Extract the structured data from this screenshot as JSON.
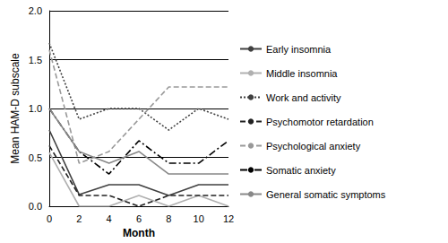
{
  "chart_data": {
    "type": "line",
    "x_label": "Month",
    "y_label": "Mean HAM-D subscale",
    "categories": [
      "0",
      "2",
      "4",
      "6",
      "8",
      "10",
      "12"
    ],
    "ylim": [
      0,
      2
    ],
    "yticks": [
      {
        "value": 0,
        "label": "0.0"
      },
      0.5,
      {
        "value": 1,
        "label": "1.0"
      },
      1.5,
      {
        "value": 2,
        "label": "2.0"
      }
    ],
    "grid": true,
    "legend": "right",
    "series": [
      {
        "name": "Early insomnia",
        "color": "#404040",
        "line_style": "solid",
        "values": [
          0.78,
          0.12,
          0.22,
          0.22,
          0.11,
          0.22,
          0.22
        ]
      },
      {
        "name": "Middle insomnia",
        "color": "#b0b0b0",
        "line_style": "solid",
        "values": [
          0.55,
          0.0,
          0.0,
          0.11,
          0.0,
          0.11,
          0.0
        ]
      },
      {
        "name": "Work and activity",
        "color": "#404040",
        "line_style": "dotted",
        "values": [
          1.67,
          0.89,
          1.0,
          1.0,
          0.78,
          1.0,
          0.89
        ]
      },
      {
        "name": "Psychomotor retardation",
        "color": "#222222",
        "line_style": "dashed",
        "values": [
          0.62,
          0.11,
          0.11,
          0.0,
          0.11,
          0.11,
          0.11
        ]
      },
      {
        "name": "Psychological anxiety",
        "color": "#999999",
        "line_style": "dashed",
        "values": [
          1.6,
          0.44,
          0.56,
          0.89,
          1.22,
          1.22,
          1.22
        ]
      },
      {
        "name": "Somatic anxiety",
        "color": "#000000",
        "line_style": "dashdot",
        "values": [
          1.0,
          0.56,
          0.33,
          0.67,
          0.44,
          0.44,
          0.67
        ]
      },
      {
        "name": "General somatic symptoms",
        "color": "#888888",
        "line_style": "solid",
        "values": [
          1.0,
          0.56,
          0.44,
          0.56,
          0.33,
          0.33,
          0.33
        ]
      }
    ]
  }
}
